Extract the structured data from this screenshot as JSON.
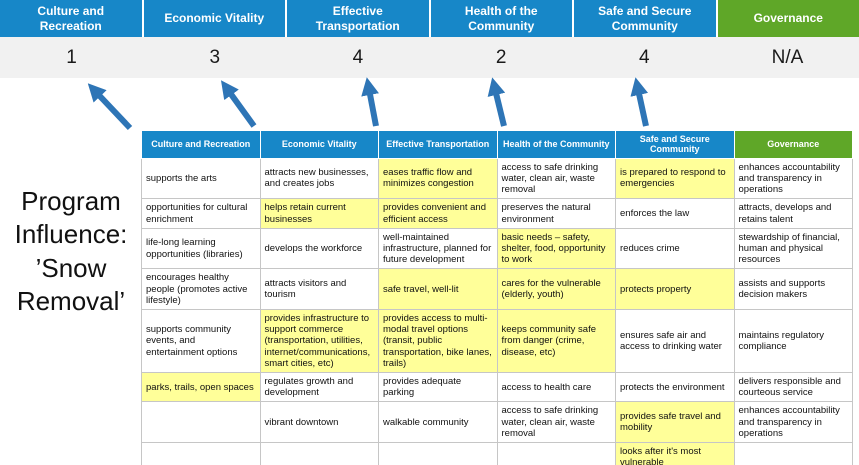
{
  "title": "Program Influence: ’Snow Removal’",
  "pillars": [
    {
      "label": "Culture and Recreation",
      "score": "1",
      "theme": "blue"
    },
    {
      "label": "Economic Vitality",
      "score": "3",
      "theme": "blue"
    },
    {
      "label": "Effective Transportation",
      "score": "4",
      "theme": "blue"
    },
    {
      "label": "Health of the Community",
      "score": "2",
      "theme": "blue"
    },
    {
      "label": "Safe and Secure Community",
      "score": "4",
      "theme": "blue"
    },
    {
      "label": "Governance",
      "score": "N/A",
      "theme": "green"
    }
  ],
  "matrix": {
    "headers": [
      "Culture and Recreation",
      "Economic Vitality",
      "Effective Transportation",
      "Health of the Community",
      "Safe and Secure Community",
      "Governance"
    ],
    "rows": [
      [
        {
          "text": "supports the arts",
          "highlight": false
        },
        {
          "text": "attracts new businesses, and creates jobs",
          "highlight": false
        },
        {
          "text": "eases traffic flow and minimizes congestion",
          "highlight": true
        },
        {
          "text": "access to safe drinking water, clean air, waste removal",
          "highlight": false
        },
        {
          "text": "is prepared to respond to emergencies",
          "highlight": true
        },
        {
          "text": "enhances accountability and transparency in operations",
          "highlight": false
        }
      ],
      [
        {
          "text": "opportunities for cultural enrichment",
          "highlight": false
        },
        {
          "text": "helps retain current businesses",
          "highlight": true
        },
        {
          "text": "provides convenient and efficient access",
          "highlight": true
        },
        {
          "text": "preserves the natural environment",
          "highlight": false
        },
        {
          "text": "enforces the law",
          "highlight": false
        },
        {
          "text": "attracts, develops and retains talent",
          "highlight": false
        }
      ],
      [
        {
          "text": "life-long learning opportunities (libraries)",
          "highlight": false
        },
        {
          "text": "develops the workforce",
          "highlight": false
        },
        {
          "text": "well-maintained infrastructure, planned for future development",
          "highlight": false
        },
        {
          "text": "basic needs – safety, shelter, food, opportunity to work",
          "highlight": true
        },
        {
          "text": "reduces crime",
          "highlight": false
        },
        {
          "text": "stewardship of financial, human and physical resources",
          "highlight": false
        }
      ],
      [
        {
          "text": "encourages healthy people (promotes active lifestyle)",
          "highlight": false
        },
        {
          "text": "attracts visitors and tourism",
          "highlight": false
        },
        {
          "text": "safe travel, well-lit",
          "highlight": true
        },
        {
          "text": "cares for the vulnerable (elderly, youth)",
          "highlight": true
        },
        {
          "text": "protects property",
          "highlight": true
        },
        {
          "text": "assists and supports decision makers",
          "highlight": false
        }
      ],
      [
        {
          "text": "supports community events, and entertainment options",
          "highlight": false
        },
        {
          "text": "provides infrastructure to support commerce (transportation, utilities, internet/communications, smart cities, etc)",
          "highlight": true
        },
        {
          "text": "provides access to multi-modal travel options (transit, public transportation, bike lanes, trails)",
          "highlight": true
        },
        {
          "text": "keeps community safe from danger (crime, disease, etc)",
          "highlight": true
        },
        {
          "text": "ensures safe air and access to drinking water",
          "highlight": false
        },
        {
          "text": "maintains regulatory compliance",
          "highlight": false
        }
      ],
      [
        {
          "text": "parks, trails, open spaces",
          "highlight": true
        },
        {
          "text": "regulates growth and development",
          "highlight": false
        },
        {
          "text": "provides adequate parking",
          "highlight": false
        },
        {
          "text": "access to health care",
          "highlight": false
        },
        {
          "text": "protects the environment",
          "highlight": false
        },
        {
          "text": "delivers responsible and courteous service",
          "highlight": false
        }
      ],
      [
        {
          "text": "",
          "highlight": false
        },
        {
          "text": "vibrant downtown",
          "highlight": false
        },
        {
          "text": "walkable community",
          "highlight": false
        },
        {
          "text": "access to safe drinking water, clean air, waste removal",
          "highlight": false
        },
        {
          "text": "provides safe travel and mobility",
          "highlight": true
        },
        {
          "text": "enhances accountability and transparency in operations",
          "highlight": false
        }
      ],
      [
        {
          "text": "",
          "highlight": false
        },
        {
          "text": "",
          "highlight": false
        },
        {
          "text": "",
          "highlight": false
        },
        {
          "text": "",
          "highlight": false
        },
        {
          "text": "looks after it's most vulnerable",
          "highlight": true
        },
        {
          "text": "",
          "highlight": false
        }
      ]
    ]
  },
  "colors": {
    "header_blue": "#1787C8",
    "header_green": "#5FA728",
    "highlight_yellow": "#FFFF99",
    "score_strip": "#F1F1F1",
    "arrow_blue": "#2E75B6",
    "table_border": "#C6C6C6"
  }
}
